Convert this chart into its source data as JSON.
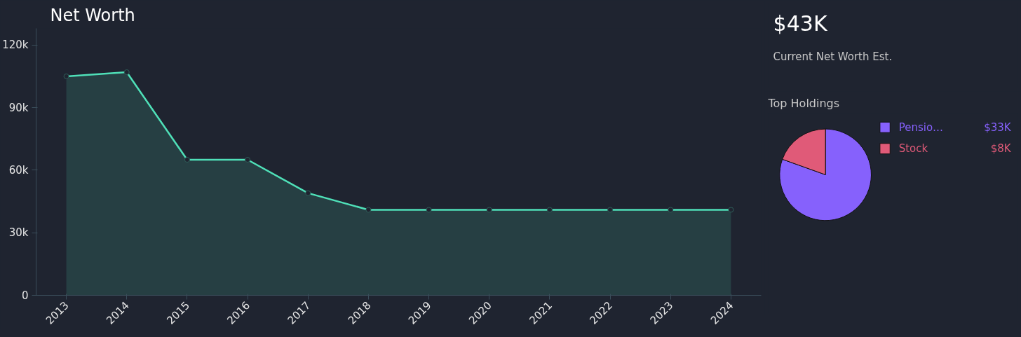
{
  "chart_data": [
    {
      "type": "area",
      "title": "Net Worth",
      "categories": [
        "2013",
        "2014",
        "2015",
        "2016",
        "2017",
        "2018",
        "2019",
        "2020",
        "2021",
        "2022",
        "2023",
        "2024"
      ],
      "series": [
        {
          "color": "#4fe0b8",
          "values": [
            105000,
            107000,
            65000,
            65000,
            49000,
            41000,
            41000,
            41000,
            41000,
            41000,
            41000,
            41000
          ]
        }
      ],
      "ylim": [
        0,
        128000
      ],
      "yticks": [
        0,
        {
          "value": 30000,
          "label": "30k"
        },
        {
          "value": 60000,
          "label": "60k"
        },
        {
          "value": 90000,
          "label": "90k"
        },
        {
          "value": 120000,
          "label": "120k"
        }
      ],
      "marker": "circle",
      "grid": false
    },
    {
      "type": "other",
      "title": "$43K",
      "subtitle": "Current Net Worth Est."
    },
    {
      "type": "pie",
      "title": "Top Holdings",
      "categories": [
        "Pensio…",
        "Stock"
      ],
      "values": [
        33,
        8
      ],
      "colors": [
        "#8661fc",
        "#e05a78"
      ],
      "value_labels": [
        "$33K",
        "$8K"
      ],
      "legend": "right"
    }
  ]
}
